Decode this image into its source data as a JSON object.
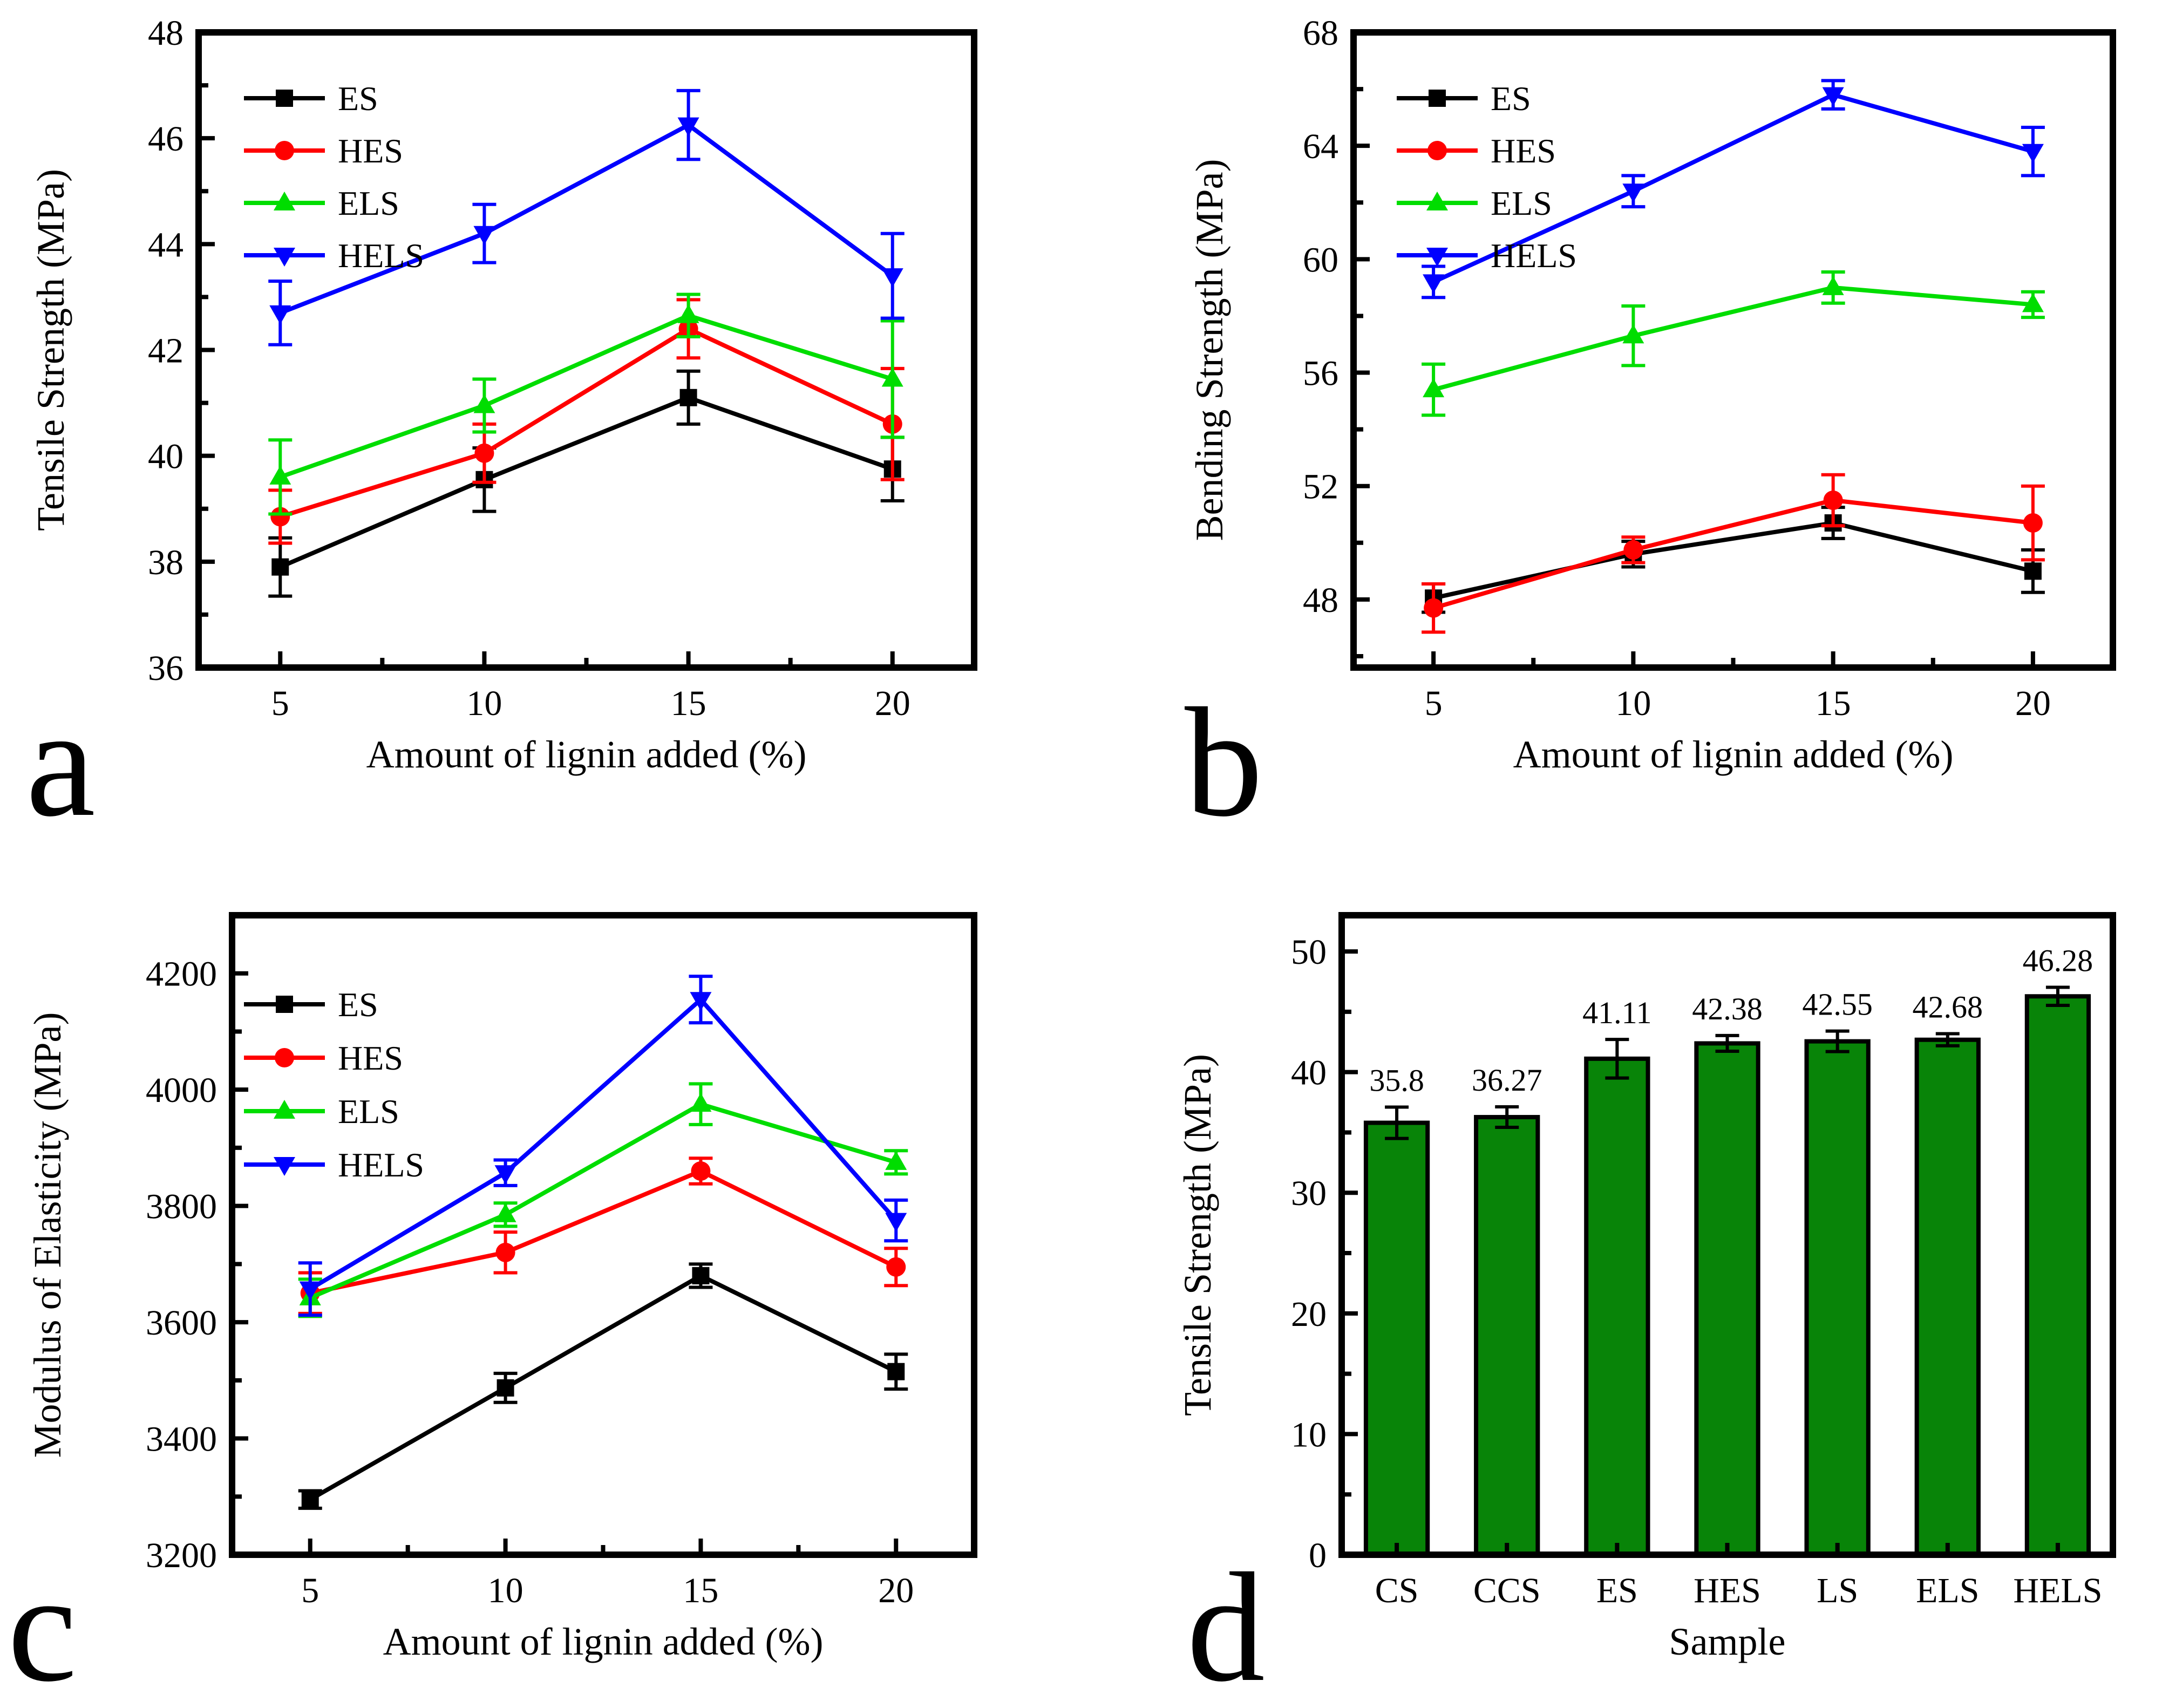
{
  "figure": {
    "background": "#ffffff"
  },
  "panels": [
    {
      "letter": "a"
    },
    {
      "letter": "b"
    },
    {
      "letter": "c"
    },
    {
      "letter": "d"
    }
  ],
  "colors": {
    "es": "#000000",
    "hes": "#ff0000",
    "els": "#00dd00",
    "hels": "#0000ff",
    "bar_fill": "#088408",
    "bar_edge": "#000000"
  },
  "chart_data": [
    {
      "id": "a",
      "type": "line",
      "xlabel": "Amount of lignin added (%)",
      "ylabel": "Tensile Strength (MPa)",
      "x": [
        5,
        10,
        15,
        20
      ],
      "xlim": [
        3,
        22
      ],
      "ylim": [
        36,
        48
      ],
      "xticks": [
        5,
        10,
        15,
        20
      ],
      "xminors": [
        7.5,
        12.5,
        17.5
      ],
      "yticks": [
        36,
        38,
        40,
        42,
        44,
        46,
        48
      ],
      "yminors": [
        37,
        39,
        41,
        43,
        45,
        47
      ],
      "legend_position": "top-left",
      "grid": false,
      "series": [
        {
          "name": "ES",
          "color": "#000000",
          "marker": "square",
          "values": [
            37.9,
            39.55,
            41.1,
            39.75
          ],
          "errors": [
            0.55,
            0.6,
            0.5,
            0.6
          ]
        },
        {
          "name": "HES",
          "color": "#ff0000",
          "marker": "circle",
          "values": [
            38.85,
            40.05,
            42.4,
            40.6
          ],
          "errors": [
            0.5,
            0.55,
            0.55,
            1.05
          ]
        },
        {
          "name": "ELS",
          "color": "#00dd00",
          "marker": "triangle-up",
          "values": [
            39.6,
            40.95,
            42.65,
            41.45
          ],
          "errors": [
            0.7,
            0.5,
            0.4,
            1.1
          ]
        },
        {
          "name": "HELS",
          "color": "#0000ff",
          "marker": "triangle-down",
          "values": [
            42.7,
            44.2,
            46.25,
            43.4
          ],
          "errors": [
            0.6,
            0.55,
            0.65,
            0.8
          ]
        }
      ]
    },
    {
      "id": "b",
      "type": "line",
      "xlabel": "Amount of lignin added (%)",
      "ylabel": "Bending Strength (MPa)",
      "x": [
        5,
        10,
        15,
        20
      ],
      "xlim": [
        3,
        22
      ],
      "ylim": [
        45.6,
        68
      ],
      "xticks": [
        5,
        10,
        15,
        20
      ],
      "xminors": [
        7.5,
        12.5,
        17.5
      ],
      "yticks": [
        48,
        52,
        56,
        60,
        64,
        68
      ],
      "yminors": [
        46,
        50,
        54,
        58,
        62,
        66
      ],
      "legend_position": "top-left",
      "grid": false,
      "series": [
        {
          "name": "ES",
          "color": "#000000",
          "marker": "square",
          "values": [
            48.05,
            49.6,
            50.7,
            49.0
          ],
          "errors": [
            0.5,
            0.45,
            0.55,
            0.75
          ]
        },
        {
          "name": "HES",
          "color": "#ff0000",
          "marker": "circle",
          "values": [
            47.7,
            49.75,
            51.5,
            50.7
          ],
          "errors": [
            0.85,
            0.45,
            0.9,
            1.3
          ]
        },
        {
          "name": "ELS",
          "color": "#00dd00",
          "marker": "triangle-up",
          "values": [
            55.4,
            57.3,
            59.0,
            58.4
          ],
          "errors": [
            0.9,
            1.05,
            0.55,
            0.45
          ]
        },
        {
          "name": "HELS",
          "color": "#0000ff",
          "marker": "triangle-down",
          "values": [
            59.2,
            62.4,
            65.8,
            63.8
          ],
          "errors": [
            0.55,
            0.55,
            0.5,
            0.85
          ]
        }
      ]
    },
    {
      "id": "c",
      "type": "line",
      "xlabel": "Amount of lignin added (%)",
      "ylabel": "Modulus of Elasticity (MPa)",
      "x": [
        5,
        10,
        15,
        20
      ],
      "xlim": [
        3,
        22
      ],
      "ylim": [
        3200,
        4300
      ],
      "xticks": [
        5,
        10,
        15,
        20
      ],
      "xminors": [
        7.5,
        12.5,
        17.5
      ],
      "yticks": [
        3200,
        3400,
        3600,
        3800,
        4000,
        4200
      ],
      "yminors": [
        3300,
        3500,
        3700,
        3900,
        4100
      ],
      "legend_position": "top-left",
      "grid": false,
      "series": [
        {
          "name": "ES",
          "color": "#000000",
          "marker": "square",
          "values": [
            3295,
            3487,
            3680,
            3515
          ],
          "errors": [
            15,
            25,
            20,
            30
          ]
        },
        {
          "name": "HES",
          "color": "#ff0000",
          "marker": "circle",
          "values": [
            3650,
            3720,
            3860,
            3695
          ],
          "errors": [
            35,
            35,
            22,
            32
          ]
        },
        {
          "name": "ELS",
          "color": "#00dd00",
          "marker": "triangle-up",
          "values": [
            3642,
            3785,
            3975,
            3875
          ],
          "errors": [
            32,
            20,
            35,
            20
          ]
        },
        {
          "name": "HELS",
          "color": "#0000ff",
          "marker": "triangle-down",
          "values": [
            3657,
            3857,
            4155,
            3775
          ],
          "errors": [
            45,
            22,
            40,
            35
          ]
        }
      ]
    },
    {
      "id": "d",
      "type": "bar",
      "xlabel": "Sample",
      "ylabel": "Tensile Strength (MPa)",
      "categories": [
        "CS",
        "CCS",
        "ES",
        "HES",
        "LS",
        "ELS",
        "HELS"
      ],
      "values": [
        35.8,
        36.27,
        41.11,
        42.38,
        42.55,
        42.68,
        46.28
      ],
      "errors": [
        1.3,
        0.85,
        1.6,
        0.65,
        0.85,
        0.5,
        0.75
      ],
      "value_labels": [
        "35.8",
        "36.27",
        "41.11",
        "42.38",
        "42.55",
        "42.68",
        "46.28"
      ],
      "bar_color": "#088408",
      "bar_edge": "#000000",
      "ylim": [
        0,
        53
      ],
      "yticks": [
        0,
        10,
        20,
        30,
        40,
        50
      ],
      "yminors": [
        5,
        15,
        25,
        35,
        45
      ],
      "grid": false
    }
  ]
}
